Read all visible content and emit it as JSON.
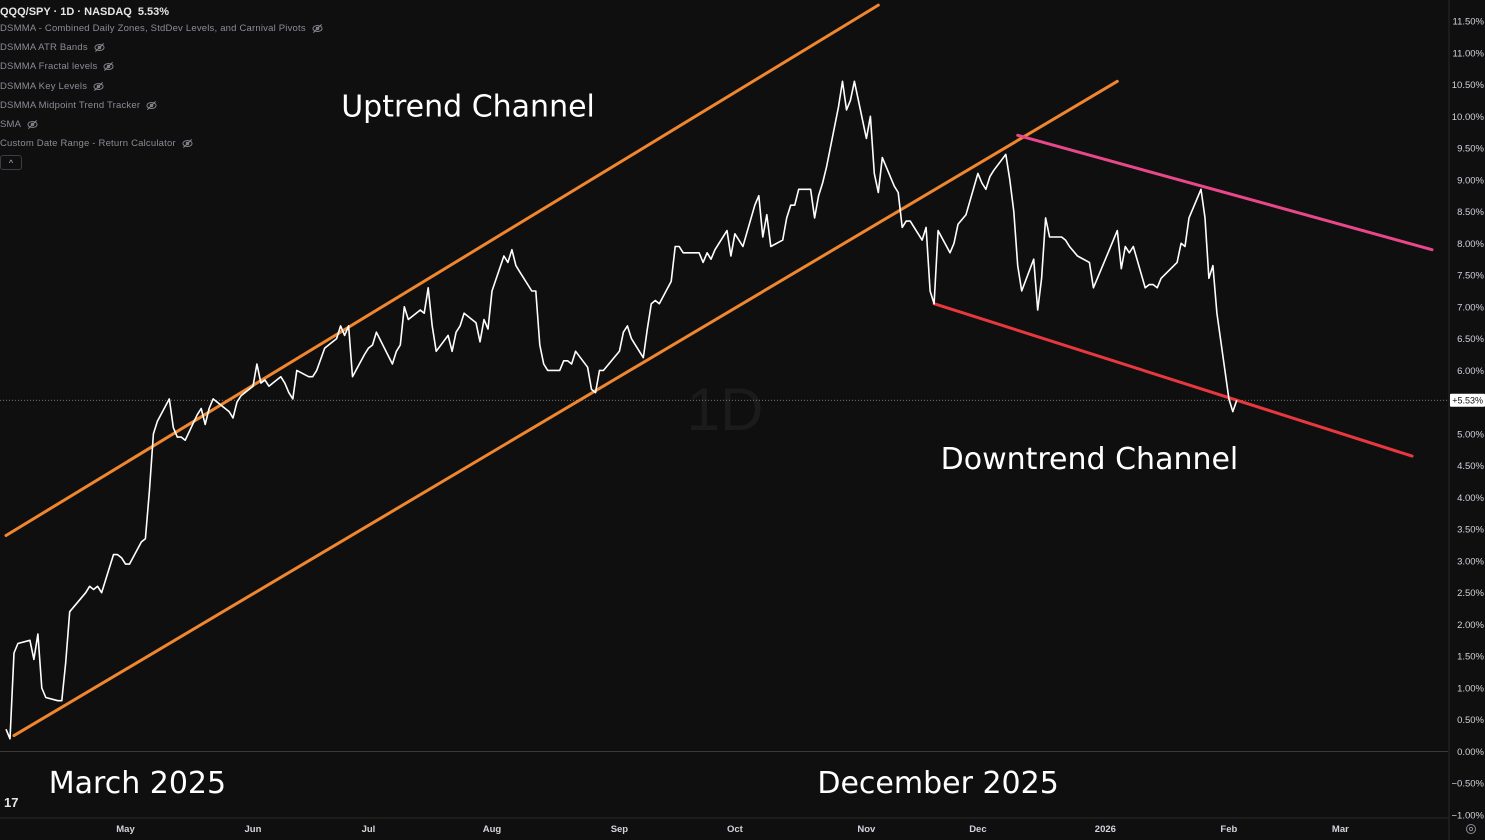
{
  "header": {
    "symbol": "QQQ/SPY · 1D · NASDAQ",
    "change": "5.53%"
  },
  "indicators": [
    {
      "label": "DSMMA - Combined Daily Zones, StdDev Levels, and Carnival Pivots",
      "icon": "eye-off-icon"
    },
    {
      "label": "DSMMA ATR Bands",
      "icon": "eye-off-icon"
    },
    {
      "label": "DSMMA Fractal levels",
      "icon": "eye-off-icon"
    },
    {
      "label": "DSMMA Key Levels",
      "icon": "eye-off-icon"
    },
    {
      "label": "DSMMA Midpoint Trend Tracker",
      "icon": "eye-off-icon"
    },
    {
      "label": "SMA",
      "icon": "eye-off-icon"
    },
    {
      "label": "Custom Date Range - Return Calculator",
      "icon": "eye-off-icon"
    }
  ],
  "collapse_glyph": "^",
  "watermark": "1D",
  "logo_glyph": "17",
  "colors": {
    "background": "#0f0f0f",
    "price_line": "#ffffff",
    "uptrend": "#f0862e",
    "downtrend_upper": "#e8488a",
    "downtrend_lower": "#e8383f",
    "axis_text": "#d1d4dc"
  },
  "chart_data": {
    "type": "line",
    "x_axis": {
      "range": [
        "2025-04-01",
        "2026-03-25"
      ],
      "ticks": [
        {
          "date": "2025-05-01",
          "label": "May"
        },
        {
          "date": "2025-06-02",
          "label": "Jun"
        },
        {
          "date": "2025-07-01",
          "label": "Jul"
        },
        {
          "date": "2025-08-01",
          "label": "Aug"
        },
        {
          "date": "2025-09-02",
          "label": "Sep"
        },
        {
          "date": "2025-10-01",
          "label": "Oct"
        },
        {
          "date": "2025-11-03",
          "label": "Nov"
        },
        {
          "date": "2025-12-01",
          "label": "Dec"
        },
        {
          "date": "2026-01-02",
          "label": "2026"
        },
        {
          "date": "2026-02-02",
          "label": "Feb"
        },
        {
          "date": "2026-03-02",
          "label": "Mar"
        }
      ]
    },
    "y_axis": {
      "range": [
        -1.0,
        11.5
      ],
      "unit": "%",
      "ticks": [
        11.5,
        11.0,
        10.5,
        10.0,
        9.5,
        9.0,
        8.5,
        8.0,
        7.5,
        7.0,
        6.5,
        6.0,
        5.5,
        5.0,
        4.5,
        4.0,
        3.5,
        3.0,
        2.5,
        2.0,
        1.5,
        1.0,
        0.5,
        0.0,
        -0.5,
        -1.0
      ],
      "tick_labels": [
        "11.50%",
        "11.00%",
        "10.50%",
        "10.00%",
        "9.50%",
        "9.00%",
        "8.50%",
        "8.00%",
        "7.50%",
        "7.00%",
        "6.50%",
        "6.00%",
        "5.50%",
        "5.00%",
        "4.50%",
        "4.00%",
        "3.50%",
        "3.00%",
        "2.50%",
        "2.00%",
        "1.50%",
        "1.00%",
        "0.50%",
        "0.00%",
        "−0.50%",
        "−1.00%"
      ]
    },
    "current_value": 5.53,
    "current_label": "+5.53%",
    "series": [
      {
        "values": [
          [
            "2025-04-01",
            0.35
          ],
          [
            "2025-04-02",
            0.2
          ],
          [
            "2025-04-03",
            1.55
          ],
          [
            "2025-04-04",
            1.7
          ],
          [
            "2025-04-07",
            1.75
          ],
          [
            "2025-04-08",
            1.45
          ],
          [
            "2025-04-09",
            1.85
          ],
          [
            "2025-04-10",
            1.0
          ],
          [
            "2025-04-11",
            0.85
          ],
          [
            "2025-04-14",
            0.8
          ],
          [
            "2025-04-15",
            0.8
          ],
          [
            "2025-04-16",
            1.4
          ],
          [
            "2025-04-17",
            2.2
          ],
          [
            "2025-04-21",
            2.5
          ],
          [
            "2025-04-22",
            2.6
          ],
          [
            "2025-04-23",
            2.55
          ],
          [
            "2025-04-24",
            2.6
          ],
          [
            "2025-04-25",
            2.5
          ],
          [
            "2025-04-28",
            3.1
          ],
          [
            "2025-04-29",
            3.1
          ],
          [
            "2025-04-30",
            3.05
          ],
          [
            "2025-05-01",
            2.95
          ],
          [
            "2025-05-02",
            2.95
          ],
          [
            "2025-05-05",
            3.3
          ],
          [
            "2025-05-06",
            3.35
          ],
          [
            "2025-05-07",
            4.1
          ],
          [
            "2025-05-08",
            5.0
          ],
          [
            "2025-05-09",
            5.2
          ],
          [
            "2025-05-12",
            5.55
          ],
          [
            "2025-05-13",
            5.1
          ],
          [
            "2025-05-14",
            4.95
          ],
          [
            "2025-05-15",
            4.95
          ],
          [
            "2025-05-16",
            4.9
          ],
          [
            "2025-05-19",
            5.3
          ],
          [
            "2025-05-20",
            5.4
          ],
          [
            "2025-05-21",
            5.15
          ],
          [
            "2025-05-22",
            5.4
          ],
          [
            "2025-05-23",
            5.55
          ],
          [
            "2025-05-27",
            5.35
          ],
          [
            "2025-05-28",
            5.25
          ],
          [
            "2025-05-29",
            5.5
          ],
          [
            "2025-05-30",
            5.6
          ],
          [
            "2025-06-02",
            5.75
          ],
          [
            "2025-06-03",
            6.1
          ],
          [
            "2025-06-04",
            5.8
          ],
          [
            "2025-06-05",
            5.85
          ],
          [
            "2025-06-06",
            5.75
          ],
          [
            "2025-06-09",
            5.9
          ],
          [
            "2025-06-10",
            5.8
          ],
          [
            "2025-06-11",
            5.65
          ],
          [
            "2025-06-12",
            5.55
          ],
          [
            "2025-06-13",
            6.0
          ],
          [
            "2025-06-16",
            5.9
          ],
          [
            "2025-06-17",
            5.9
          ],
          [
            "2025-06-18",
            6.0
          ],
          [
            "2025-06-20",
            6.35
          ],
          [
            "2025-06-23",
            6.5
          ],
          [
            "2025-06-24",
            6.7
          ],
          [
            "2025-06-25",
            6.55
          ],
          [
            "2025-06-26",
            6.7
          ],
          [
            "2025-06-27",
            5.9
          ],
          [
            "2025-06-30",
            6.25
          ],
          [
            "2025-07-01",
            6.35
          ],
          [
            "2025-07-02",
            6.4
          ],
          [
            "2025-07-03",
            6.6
          ],
          [
            "2025-07-07",
            6.1
          ],
          [
            "2025-07-08",
            6.3
          ],
          [
            "2025-07-09",
            6.4
          ],
          [
            "2025-07-10",
            7.0
          ],
          [
            "2025-07-11",
            6.8
          ],
          [
            "2025-07-14",
            6.95
          ],
          [
            "2025-07-15",
            6.9
          ],
          [
            "2025-07-16",
            7.3
          ],
          [
            "2025-07-17",
            6.7
          ],
          [
            "2025-07-18",
            6.3
          ],
          [
            "2025-07-21",
            6.55
          ],
          [
            "2025-07-22",
            6.3
          ],
          [
            "2025-07-23",
            6.6
          ],
          [
            "2025-07-24",
            6.7
          ],
          [
            "2025-07-25",
            6.9
          ],
          [
            "2025-07-28",
            6.75
          ],
          [
            "2025-07-29",
            6.45
          ],
          [
            "2025-07-30",
            6.8
          ],
          [
            "2025-07-31",
            6.65
          ],
          [
            "2025-08-01",
            7.25
          ],
          [
            "2025-08-04",
            7.8
          ],
          [
            "2025-08-05",
            7.7
          ],
          [
            "2025-08-06",
            7.9
          ],
          [
            "2025-08-07",
            7.65
          ],
          [
            "2025-08-08",
            7.55
          ],
          [
            "2025-08-11",
            7.25
          ],
          [
            "2025-08-12",
            7.25
          ],
          [
            "2025-08-13",
            6.4
          ],
          [
            "2025-08-14",
            6.1
          ],
          [
            "2025-08-15",
            6.0
          ],
          [
            "2025-08-18",
            6.0
          ],
          [
            "2025-08-19",
            6.15
          ],
          [
            "2025-08-20",
            6.15
          ],
          [
            "2025-08-21",
            6.1
          ],
          [
            "2025-08-22",
            6.3
          ],
          [
            "2025-08-25",
            6.05
          ],
          [
            "2025-08-26",
            5.7
          ],
          [
            "2025-08-27",
            5.65
          ],
          [
            "2025-08-28",
            6.0
          ],
          [
            "2025-08-29",
            6.0
          ],
          [
            "2025-09-02",
            6.3
          ],
          [
            "2025-09-03",
            6.6
          ],
          [
            "2025-09-04",
            6.7
          ],
          [
            "2025-09-05",
            6.5
          ],
          [
            "2025-09-08",
            6.2
          ],
          [
            "2025-09-09",
            6.65
          ],
          [
            "2025-09-10",
            7.05
          ],
          [
            "2025-09-11",
            7.1
          ],
          [
            "2025-09-12",
            7.05
          ],
          [
            "2025-09-15",
            7.4
          ],
          [
            "2025-09-16",
            7.95
          ],
          [
            "2025-09-17",
            7.95
          ],
          [
            "2025-09-18",
            7.85
          ],
          [
            "2025-09-19",
            7.85
          ],
          [
            "2025-09-22",
            7.85
          ],
          [
            "2025-09-23",
            7.7
          ],
          [
            "2025-09-24",
            7.85
          ],
          [
            "2025-09-25",
            7.75
          ],
          [
            "2025-09-26",
            7.9
          ],
          [
            "2025-09-29",
            8.2
          ],
          [
            "2025-09-30",
            7.8
          ],
          [
            "2025-10-01",
            8.15
          ],
          [
            "2025-10-02",
            8.05
          ],
          [
            "2025-10-03",
            7.95
          ],
          [
            "2025-10-06",
            8.6
          ],
          [
            "2025-10-07",
            8.75
          ],
          [
            "2025-10-08",
            8.1
          ],
          [
            "2025-10-09",
            8.45
          ],
          [
            "2025-10-10",
            7.95
          ],
          [
            "2025-10-13",
            8.05
          ],
          [
            "2025-10-14",
            8.4
          ],
          [
            "2025-10-15",
            8.6
          ],
          [
            "2025-10-16",
            8.6
          ],
          [
            "2025-10-17",
            8.85
          ],
          [
            "2025-10-20",
            8.85
          ],
          [
            "2025-10-21",
            8.4
          ],
          [
            "2025-10-22",
            8.75
          ],
          [
            "2025-10-23",
            8.95
          ],
          [
            "2025-10-24",
            9.2
          ],
          [
            "2025-10-27",
            10.15
          ],
          [
            "2025-10-28",
            10.55
          ],
          [
            "2025-10-29",
            10.1
          ],
          [
            "2025-10-30",
            10.25
          ],
          [
            "2025-10-31",
            10.55
          ],
          [
            "2025-11-03",
            9.65
          ],
          [
            "2025-11-04",
            10.0
          ],
          [
            "2025-11-05",
            9.1
          ],
          [
            "2025-11-06",
            8.8
          ],
          [
            "2025-11-07",
            9.35
          ],
          [
            "2025-11-10",
            8.9
          ],
          [
            "2025-11-11",
            8.8
          ],
          [
            "2025-11-12",
            8.25
          ],
          [
            "2025-11-13",
            8.35
          ],
          [
            "2025-11-14",
            8.35
          ],
          [
            "2025-11-17",
            8.05
          ],
          [
            "2025-11-18",
            8.25
          ],
          [
            "2025-11-19",
            7.25
          ],
          [
            "2025-11-20",
            7.05
          ],
          [
            "2025-11-21",
            8.2
          ],
          [
            "2025-11-24",
            7.85
          ],
          [
            "2025-11-25",
            8.0
          ],
          [
            "2025-11-26",
            8.3
          ],
          [
            "2025-11-28",
            8.45
          ],
          [
            "2025-12-01",
            9.1
          ],
          [
            "2025-12-02",
            8.95
          ],
          [
            "2025-12-03",
            8.85
          ],
          [
            "2025-12-04",
            9.05
          ],
          [
            "2025-12-05",
            9.15
          ],
          [
            "2025-12-08",
            9.4
          ],
          [
            "2025-12-09",
            9.0
          ],
          [
            "2025-12-10",
            8.5
          ],
          [
            "2025-12-11",
            7.65
          ],
          [
            "2025-12-12",
            7.25
          ],
          [
            "2025-12-15",
            7.75
          ],
          [
            "2025-12-16",
            6.95
          ],
          [
            "2025-12-17",
            7.45
          ],
          [
            "2025-12-18",
            8.4
          ],
          [
            "2025-12-19",
            8.1
          ],
          [
            "2025-12-22",
            8.1
          ],
          [
            "2025-12-23",
            8.05
          ],
          [
            "2025-12-24",
            7.95
          ],
          [
            "2025-12-26",
            7.8
          ],
          [
            "2025-12-29",
            7.7
          ],
          [
            "2025-12-30",
            7.3
          ],
          [
            "2025-12-31",
            7.45
          ],
          [
            "2026-01-02",
            7.75
          ],
          [
            "2026-01-05",
            8.2
          ],
          [
            "2026-01-06",
            7.6
          ],
          [
            "2026-01-07",
            7.95
          ],
          [
            "2026-01-08",
            7.85
          ],
          [
            "2026-01-09",
            7.95
          ],
          [
            "2026-01-12",
            7.3
          ],
          [
            "2026-01-13",
            7.35
          ],
          [
            "2026-01-14",
            7.35
          ],
          [
            "2026-01-15",
            7.3
          ],
          [
            "2026-01-16",
            7.45
          ],
          [
            "2026-01-20",
            7.7
          ],
          [
            "2026-01-21",
            8.0
          ],
          [
            "2026-01-22",
            7.95
          ],
          [
            "2026-01-23",
            8.4
          ],
          [
            "2026-01-26",
            8.85
          ],
          [
            "2026-01-27",
            8.4
          ],
          [
            "2026-01-28",
            7.45
          ],
          [
            "2026-01-29",
            7.65
          ],
          [
            "2026-01-30",
            6.9
          ],
          [
            "2026-02-02",
            5.55
          ],
          [
            "2026-02-03",
            5.35
          ],
          [
            "2026-02-04",
            5.53
          ]
        ]
      }
    ],
    "trendlines": [
      {
        "name": "uptrend-upper",
        "color": "#f0862e",
        "points": [
          [
            "2025-04-01",
            3.4
          ],
          [
            "2025-11-06",
            11.75
          ]
        ]
      },
      {
        "name": "uptrend-lower",
        "color": "#f0862e",
        "points": [
          [
            "2025-04-03",
            0.25
          ],
          [
            "2026-01-05",
            10.55
          ]
        ]
      },
      {
        "name": "downtrend-upper",
        "color": "#e8488a",
        "points": [
          [
            "2025-12-11",
            9.7
          ],
          [
            "2026-03-25",
            7.9
          ]
        ]
      },
      {
        "name": "downtrend-lower",
        "color": "#e8383f",
        "points": [
          [
            "2025-11-20",
            7.05
          ],
          [
            "2026-03-20",
            4.65
          ]
        ]
      }
    ],
    "annotations": [
      {
        "text": "Uptrend Channel",
        "date": "2025-07-26",
        "value": 10.0
      },
      {
        "text": "Downtrend Channel",
        "date": "2025-12-29",
        "value": 4.45
      },
      {
        "text": "March 2025",
        "date": "2025-05-04",
        "value": -0.65
      },
      {
        "text": "December 2025",
        "date": "2025-11-21",
        "value": -0.65
      }
    ]
  }
}
